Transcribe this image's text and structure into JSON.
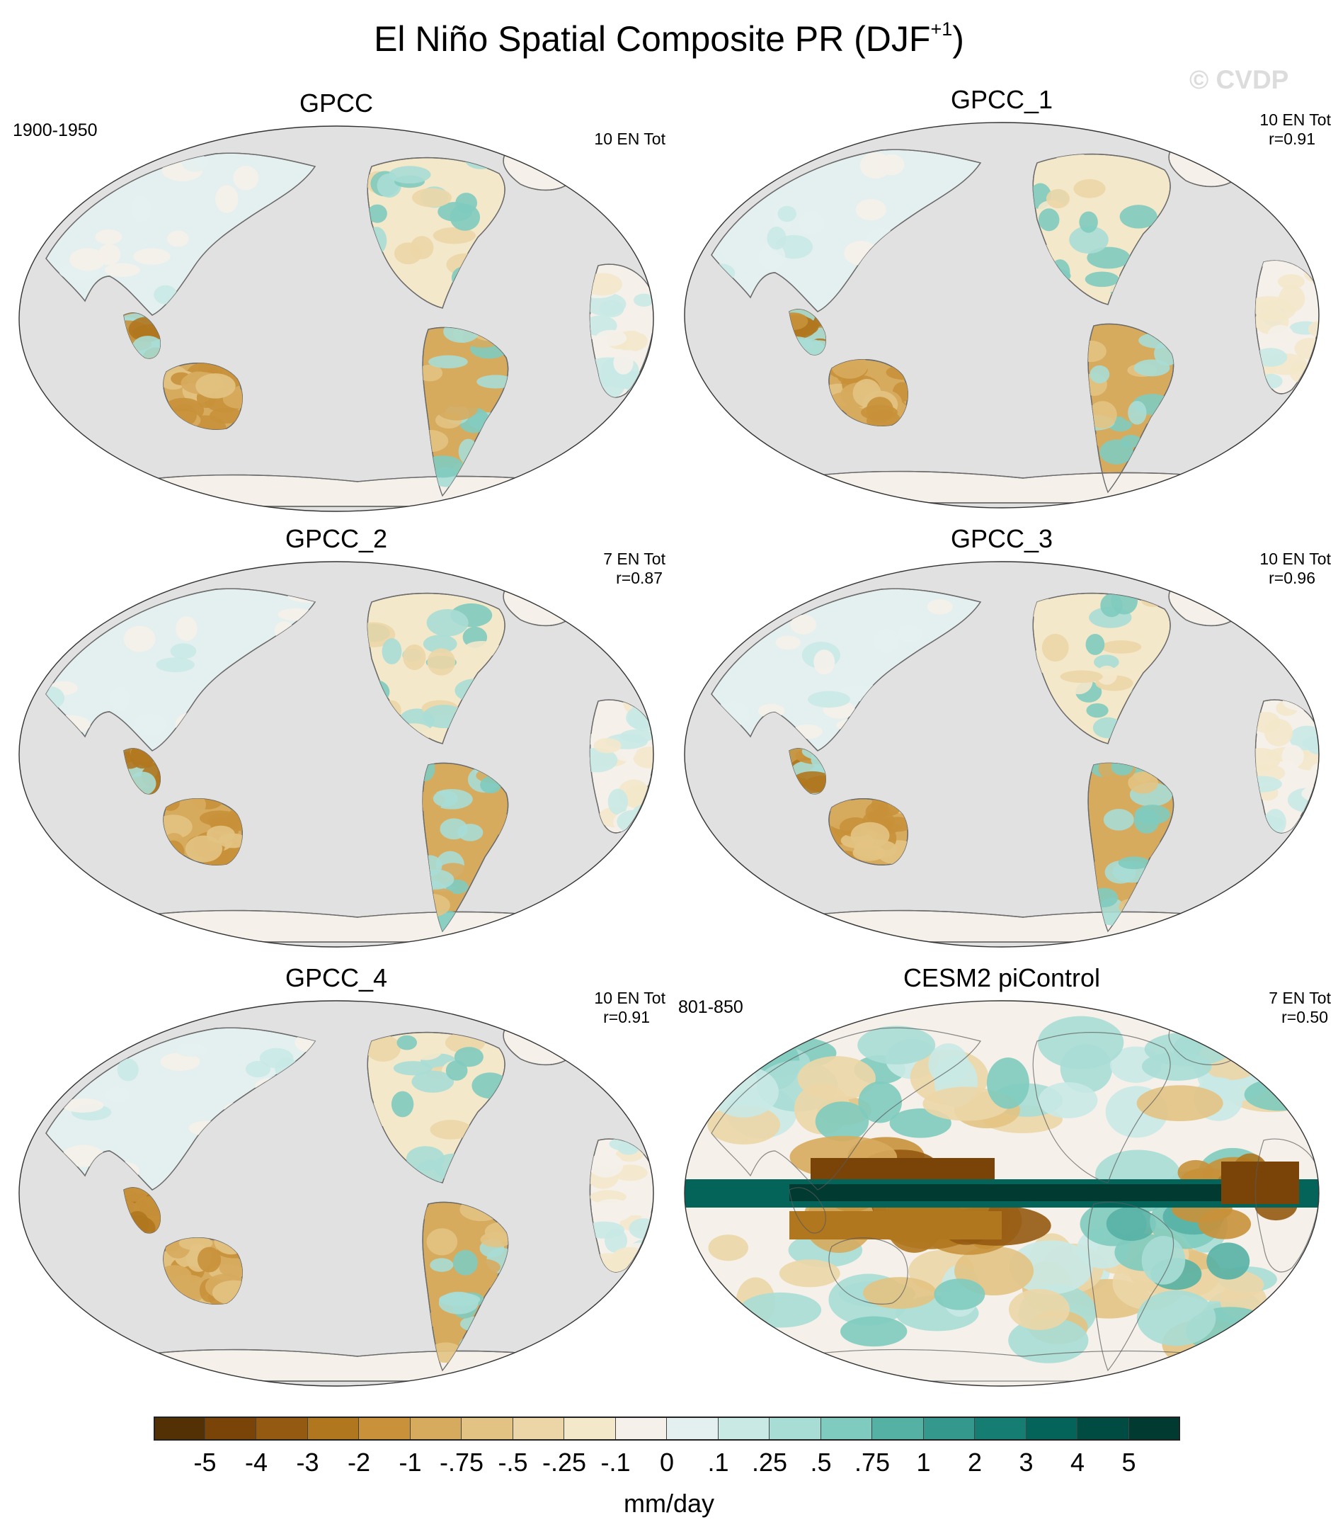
{
  "title": {
    "main": "El Niño Spatial Composite PR (DJF",
    "superscript": "+1",
    "close": ")"
  },
  "watermark": "© CVDP",
  "panels": [
    {
      "id": "gpcc",
      "title": "GPCC",
      "period": "1900-1950",
      "stats_line1": "10 EN Tot",
      "stats_line2": "",
      "pattern": "obs"
    },
    {
      "id": "gpcc-1",
      "title": "GPCC_1",
      "period": "",
      "stats_line1": "10 EN Tot",
      "stats_line2": "r=0.91",
      "pattern": "obs"
    },
    {
      "id": "gpcc-2",
      "title": "GPCC_2",
      "period": "",
      "stats_line1": "7 EN Tot",
      "stats_line2": "r=0.87",
      "pattern": "obs"
    },
    {
      "id": "gpcc-3",
      "title": "GPCC_3",
      "period": "",
      "stats_line1": "10 EN Tot",
      "stats_line2": "r=0.96",
      "pattern": "obs"
    },
    {
      "id": "gpcc-4",
      "title": "GPCC_4",
      "period": "",
      "stats_line1": "10 EN Tot",
      "stats_line2": "r=0.91",
      "pattern": "obs"
    },
    {
      "id": "cesm2-picontrol",
      "title": "CESM2 piControl",
      "period": "801-850",
      "stats_line1": "7 EN Tot",
      "stats_line2": "r=0.50",
      "pattern": "model"
    }
  ],
  "colorbar": {
    "labels": [
      "-5",
      "-4",
      "-3",
      "-2",
      "-1",
      "-.75",
      "-.5",
      "-.25",
      "-.1",
      "0",
      ".1",
      ".25",
      ".5",
      ".75",
      "1",
      "2",
      "3",
      "4",
      "5"
    ],
    "colors": [
      "#543005",
      "#7a4409",
      "#955a12",
      "#b0771f",
      "#c8913a",
      "#d7ab5e",
      "#e3c383",
      "#ecd6a7",
      "#f4e8cb",
      "#f5f1ea",
      "#e4f0ef",
      "#c9e9e5",
      "#a8ddd5",
      "#80cbbf",
      "#56b1a5",
      "#35988c",
      "#167d72",
      "#05645a",
      "#004c42",
      "#003a30"
    ],
    "units": "mm/day"
  }
}
